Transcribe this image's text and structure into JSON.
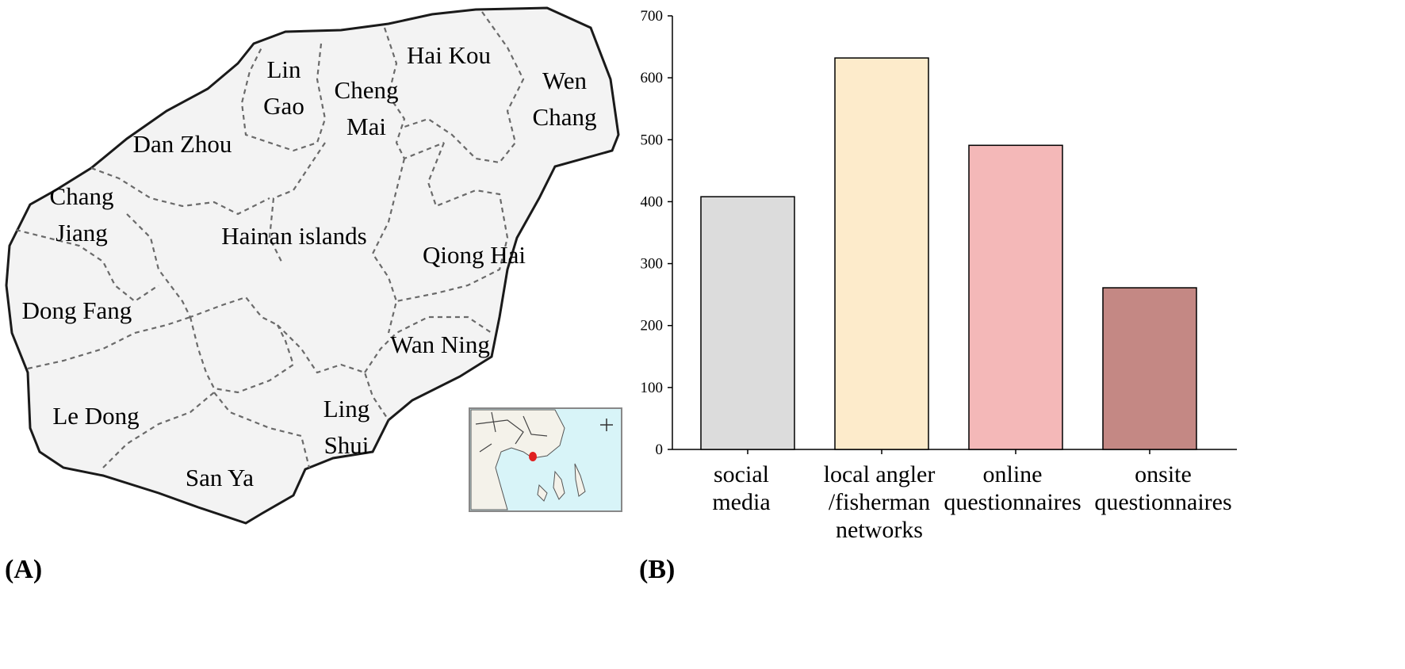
{
  "panels": {
    "a_label": "(A)",
    "b_label": "(B)"
  },
  "map": {
    "regions": [
      {
        "key": "hai_kou",
        "lines": [
          "Hai Kou"
        ]
      },
      {
        "key": "lin_gao",
        "lines": [
          "Lin",
          "Gao"
        ]
      },
      {
        "key": "cheng_mai",
        "lines": [
          "Cheng",
          "Mai"
        ]
      },
      {
        "key": "wen_chang",
        "lines": [
          "Wen",
          "Chang"
        ]
      },
      {
        "key": "dan_zhou",
        "lines": [
          "Dan Zhou"
        ]
      },
      {
        "key": "chang_jiang",
        "lines": [
          "Chang",
          "Jiang"
        ]
      },
      {
        "key": "hainan_islands",
        "lines": [
          "Hainan  islands"
        ]
      },
      {
        "key": "qiong_hai",
        "lines": [
          "Qiong  Hai"
        ]
      },
      {
        "key": "dong_fang",
        "lines": [
          "Dong Fang"
        ]
      },
      {
        "key": "wan_ning",
        "lines": [
          "Wan Ning"
        ]
      },
      {
        "key": "le_dong",
        "lines": [
          "Le Dong"
        ]
      },
      {
        "key": "ling_shui",
        "lines": [
          "Ling",
          "Shui"
        ]
      },
      {
        "key": "san_ya",
        "lines": [
          "San Ya"
        ]
      }
    ],
    "colors": {
      "land": "#f3f3f3",
      "border": "#1a1a1a",
      "inset_sea": "#d8f4f8",
      "inset_land": "#f4f2ea",
      "marker": "#e02020"
    }
  },
  "chart_data": {
    "type": "bar",
    "categories": [
      [
        "social",
        "media"
      ],
      [
        "local angler",
        "/fisherman",
        "networks"
      ],
      [
        "online",
        "questionnaires"
      ],
      [
        "onsite",
        "questionnaires"
      ]
    ],
    "values": [
      408,
      632,
      491,
      261
    ],
    "colors": [
      "#dcdcdc",
      "#fdebcb",
      "#f4b8b8",
      "#c48884"
    ],
    "ylim": [
      0,
      700
    ],
    "yticks": [
      0,
      100,
      200,
      300,
      400,
      500,
      600,
      700
    ],
    "xlabel": "",
    "ylabel": "",
    "grid": false
  }
}
